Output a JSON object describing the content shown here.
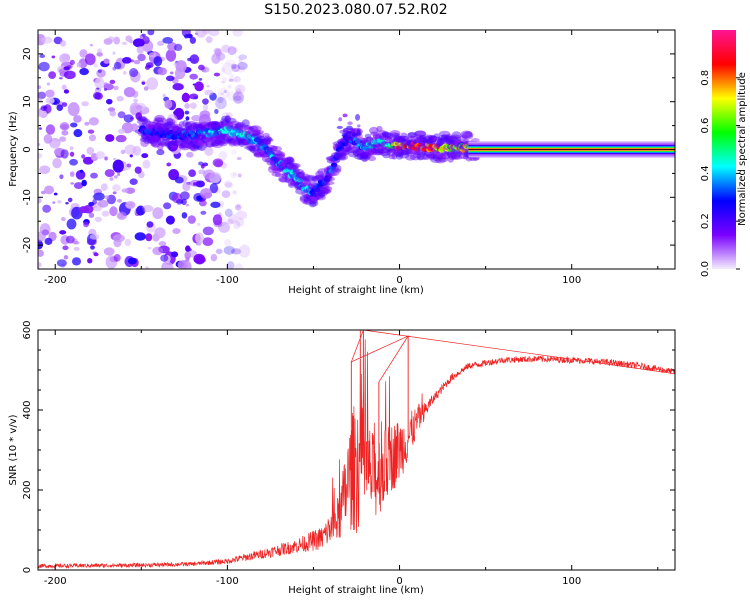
{
  "title": "S150.2023.080.07.52.R02",
  "chart_data": [
    {
      "type": "heatmap",
      "name": "spectrogram",
      "xlabel": "Height of straight line (km)",
      "ylabel": "Frequency (Hz)",
      "xlim": [
        -210,
        160
      ],
      "ylim": [
        -25,
        25
      ],
      "xticks": [
        -200,
        -100,
        0,
        100
      ],
      "yticks": [
        -20,
        -10,
        0,
        10,
        20
      ],
      "colorbar": {
        "label": "Normalized spectral amplitude",
        "range": [
          0,
          1
        ],
        "ticks": [
          "0.0",
          "0.2",
          "0.4",
          "0.6",
          "0.8"
        ],
        "tick_values": [
          0.0,
          0.2,
          0.4,
          0.6,
          0.8
        ],
        "colors": [
          "#f4ecfc",
          "#7a00ff",
          "#0000ff",
          "#00ffff",
          "#00ff00",
          "#ffff00",
          "#ff0000",
          "#ff1493"
        ]
      },
      "ridge": {
        "x": [
          -148,
          -130,
          -120,
          -110,
          -100,
          -90,
          -80,
          -70,
          -60,
          -55,
          -50,
          -45,
          -40,
          -35,
          -30,
          -25,
          -20,
          -15,
          -10,
          -5,
          0,
          10,
          20,
          30,
          40,
          60,
          100,
          160
        ],
        "freq": [
          4,
          3,
          3,
          3.5,
          4,
          3,
          1,
          -3,
          -6,
          -8,
          -9,
          -7,
          -5,
          0,
          2.5,
          1.5,
          0.5,
          1,
          1.5,
          1,
          0.8,
          0.6,
          0.4,
          0.3,
          0.2,
          0.1,
          0.1,
          0.1
        ],
        "amp": [
          0.3,
          0.3,
          0.35,
          0.4,
          0.45,
          0.45,
          0.4,
          0.4,
          0.42,
          0.45,
          0.35,
          0.3,
          0.35,
          0.3,
          0.35,
          0.35,
          0.4,
          0.45,
          0.45,
          0.55,
          0.85,
          0.9,
          0.85,
          0.7,
          0.75,
          0.9,
          0.95,
          0.95
        ]
      },
      "noise_extent_x": [
        -210,
        -105
      ],
      "constant_line": {
        "freq": 0,
        "x_from": 40,
        "x_to": 160
      }
    },
    {
      "type": "line",
      "name": "snr",
      "xlabel": "Height of straight line (km)",
      "ylabel": "SNR (10 * v/v)",
      "xlim": [
        -210,
        160
      ],
      "ylim": [
        0,
        600
      ],
      "xticks": [
        -200,
        -100,
        0,
        100
      ],
      "yticks": [
        0,
        200,
        400,
        600
      ],
      "color": "#ee2222",
      "envelope": {
        "x": [
          -210,
          -150,
          -120,
          -100,
          -80,
          -60,
          -45,
          -35,
          -30,
          -25,
          -20,
          -15,
          -10,
          -5,
          0,
          5,
          10,
          15,
          20,
          30,
          40,
          60,
          80,
          100,
          120,
          140,
          160
        ],
        "y": [
          10,
          12,
          15,
          22,
          40,
          60,
          80,
          130,
          220,
          270,
          260,
          230,
          250,
          280,
          300,
          330,
          370,
          400,
          430,
          480,
          510,
          525,
          528,
          525,
          520,
          510,
          495
        ],
        "amp": [
          5,
          5,
          5,
          7,
          12,
          18,
          30,
          60,
          120,
          180,
          130,
          110,
          100,
          90,
          80,
          60,
          40,
          20,
          12,
          10,
          8,
          8,
          8,
          8,
          8,
          8,
          8
        ]
      },
      "spikes": [
        {
          "x": -21,
          "y": 600
        },
        {
          "x": -28,
          "y": 520
        },
        {
          "x": 5,
          "y": 585
        },
        {
          "x": -12,
          "y": 470
        }
      ]
    }
  ]
}
